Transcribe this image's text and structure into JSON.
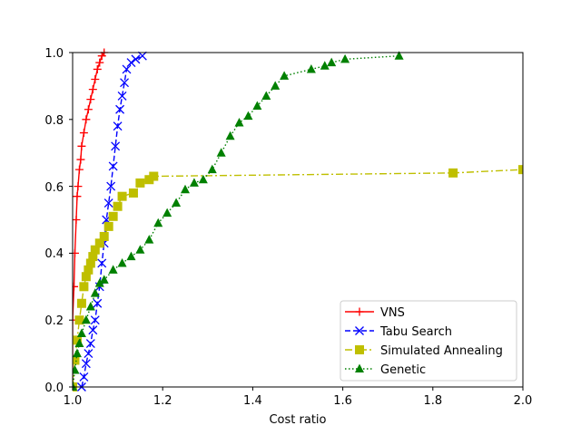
{
  "chart_data": {
    "type": "line",
    "title": "",
    "xlabel": "Cost ratio",
    "ylabel": "",
    "xlim": [
      1.0,
      2.0
    ],
    "ylim": [
      0.0,
      1.0
    ],
    "xticks": [
      "1.0",
      "1.2",
      "1.4",
      "1.6",
      "1.8",
      "2.0"
    ],
    "yticks": [
      "0.0",
      "0.2",
      "0.4",
      "0.6",
      "0.8",
      "1.0"
    ],
    "grid": false,
    "legend_position": "lower-right",
    "series": [
      {
        "name": "VNS",
        "color": "#ff0000",
        "line_style": "solid",
        "marker": "plus",
        "x": [
          1.0,
          1.0,
          1.003,
          1.005,
          1.008,
          1.01,
          1.012,
          1.015,
          1.018,
          1.02,
          1.025,
          1.03,
          1.035,
          1.04,
          1.045,
          1.05,
          1.055,
          1.06,
          1.065,
          1.07
        ],
        "y": [
          0.0,
          0.2,
          0.3,
          0.4,
          0.5,
          0.57,
          0.6,
          0.65,
          0.68,
          0.72,
          0.76,
          0.8,
          0.83,
          0.86,
          0.89,
          0.92,
          0.95,
          0.97,
          0.99,
          1.0
        ]
      },
      {
        "name": "Tabu Search",
        "color": "#0000ff",
        "line_style": "dashed",
        "marker": "x",
        "x": [
          1.02,
          1.025,
          1.03,
          1.035,
          1.04,
          1.045,
          1.05,
          1.055,
          1.06,
          1.065,
          1.07,
          1.075,
          1.08,
          1.085,
          1.09,
          1.095,
          1.1,
          1.105,
          1.11,
          1.115,
          1.12,
          1.13,
          1.14,
          1.155
        ],
        "y": [
          0.0,
          0.03,
          0.07,
          0.1,
          0.13,
          0.17,
          0.2,
          0.25,
          0.3,
          0.37,
          0.43,
          0.5,
          0.55,
          0.6,
          0.66,
          0.72,
          0.78,
          0.83,
          0.87,
          0.91,
          0.95,
          0.97,
          0.98,
          0.99
        ]
      },
      {
        "name": "Simulated Annealing",
        "color": "#bfbf00",
        "line_style": "dashdot",
        "marker": "square",
        "x": [
          1.0,
          1.005,
          1.01,
          1.015,
          1.02,
          1.025,
          1.03,
          1.035,
          1.04,
          1.045,
          1.05,
          1.06,
          1.07,
          1.08,
          1.09,
          1.1,
          1.11,
          1.135,
          1.15,
          1.17,
          1.18,
          1.845,
          2.0
        ],
        "y": [
          0.0,
          0.08,
          0.14,
          0.2,
          0.25,
          0.3,
          0.33,
          0.35,
          0.37,
          0.39,
          0.41,
          0.43,
          0.45,
          0.48,
          0.51,
          0.54,
          0.57,
          0.58,
          0.61,
          0.62,
          0.63,
          0.64,
          0.65
        ]
      },
      {
        "name": "Genetic",
        "color": "#008000",
        "line_style": "dotted",
        "marker": "triangle",
        "x": [
          1.0,
          1.005,
          1.01,
          1.015,
          1.02,
          1.03,
          1.04,
          1.05,
          1.06,
          1.07,
          1.09,
          1.11,
          1.13,
          1.15,
          1.17,
          1.19,
          1.21,
          1.23,
          1.25,
          1.27,
          1.29,
          1.31,
          1.33,
          1.35,
          1.37,
          1.39,
          1.41,
          1.43,
          1.45,
          1.47,
          1.53,
          1.56,
          1.575,
          1.605,
          1.725
        ],
        "y": [
          0.0,
          0.05,
          0.1,
          0.13,
          0.16,
          0.2,
          0.24,
          0.28,
          0.31,
          0.32,
          0.35,
          0.37,
          0.39,
          0.41,
          0.44,
          0.49,
          0.52,
          0.55,
          0.59,
          0.61,
          0.62,
          0.65,
          0.7,
          0.75,
          0.79,
          0.81,
          0.84,
          0.87,
          0.9,
          0.93,
          0.95,
          0.96,
          0.97,
          0.98,
          0.99
        ]
      }
    ]
  }
}
